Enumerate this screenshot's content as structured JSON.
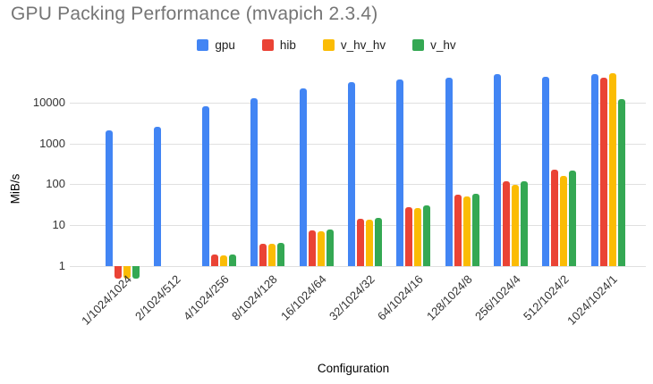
{
  "title": "GPU Packing Performance (mvapich 2.3.4)",
  "chart_data": {
    "type": "bar",
    "title": "GPU Packing Performance (mvapich 2.3.4)",
    "xlabel": "Configuration",
    "ylabel": "MiB/s",
    "y_scale": "log",
    "y_ticks": [
      "1",
      "10",
      "100",
      "1000",
      "10000"
    ],
    "ylim": [
      0.45,
      56000
    ],
    "grid": true,
    "legend_position": "top",
    "categories": [
      "1/1024/1024",
      "2/1024/512",
      "4/1024/256",
      "8/1024/128",
      "16/1024/64",
      "32/1024/32",
      "64/1024/16",
      "128/1024/8",
      "256/1024/4",
      "512/1024/2",
      "1024/1024/1"
    ],
    "series": [
      {
        "name": "gpu",
        "color": "#4285F4",
        "values": [
          2100,
          2600,
          8100,
          12600,
          22000,
          31000,
          37000,
          40000,
          49000,
          43000,
          49000
        ]
      },
      {
        "name": "hib",
        "color": "#EA4335",
        "values": [
          0.5,
          null,
          1.9,
          3.6,
          7.5,
          14.5,
          28,
          57,
          120,
          230,
          40000
        ]
      },
      {
        "name": "v_hv_hv",
        "color": "#FBBC04",
        "values": [
          0.5,
          null,
          1.8,
          3.5,
          7.1,
          13.5,
          26,
          51,
          95,
          160,
          53000
        ]
      },
      {
        "name": "v_hv",
        "color": "#34A853",
        "values": [
          0.5,
          null,
          1.9,
          3.7,
          7.7,
          15,
          30,
          60,
          120,
          215,
          12000
        ]
      }
    ]
  },
  "style": {
    "title_color": "#757575",
    "grid_color": "#e0e0e0",
    "axis_text_color": "#333333"
  }
}
